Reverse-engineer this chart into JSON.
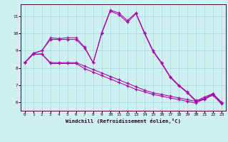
{
  "background_color": "#cff0f0",
  "grid_color": "#a0d8d8",
  "line_color": "#aa00aa",
  "xlabel": "Windchill (Refroidissement éolien,°C)",
  "xlim": [
    -0.5,
    23.5
  ],
  "ylim": [
    5.5,
    11.7
  ],
  "yticks": [
    6,
    7,
    8,
    9,
    10,
    11
  ],
  "xticks": [
    0,
    1,
    2,
    3,
    4,
    5,
    6,
    7,
    8,
    9,
    10,
    11,
    12,
    13,
    14,
    15,
    16,
    17,
    18,
    19,
    20,
    21,
    22,
    23
  ],
  "s1_x": [
    0,
    1,
    2,
    3,
    4,
    5,
    6,
    7,
    8,
    9,
    10,
    11,
    12,
    13,
    14,
    15,
    16,
    17,
    18,
    19,
    20,
    21,
    22,
    23
  ],
  "s1_y": [
    8.3,
    8.85,
    9.0,
    9.75,
    9.7,
    9.75,
    9.75,
    9.2,
    8.3,
    10.05,
    11.35,
    11.2,
    10.75,
    11.2,
    10.05,
    9.0,
    8.3,
    7.5,
    7.0,
    6.6,
    6.1,
    6.2,
    6.5,
    6.0
  ],
  "s2_x": [
    0,
    1,
    2,
    3,
    4,
    5,
    6,
    7,
    8,
    9,
    10,
    11,
    12,
    13,
    14,
    15,
    16,
    17,
    18,
    19,
    20,
    21,
    22,
    23
  ],
  "s2_y": [
    8.3,
    8.85,
    9.0,
    9.65,
    9.65,
    9.65,
    9.65,
    9.15,
    8.3,
    10.0,
    11.3,
    11.1,
    10.65,
    11.15,
    10.0,
    8.95,
    8.25,
    7.45,
    6.95,
    6.55,
    6.05,
    6.15,
    6.45,
    5.95
  ],
  "s3_x": [
    0,
    1,
    2,
    3,
    4,
    5,
    6,
    7,
    8,
    9,
    10,
    11,
    12,
    13,
    14,
    15,
    16,
    17,
    18,
    19,
    20,
    21,
    22,
    23
  ],
  "s3_y": [
    8.3,
    8.8,
    8.8,
    8.3,
    8.3,
    8.3,
    8.3,
    8.1,
    7.9,
    7.7,
    7.5,
    7.3,
    7.1,
    6.9,
    6.7,
    6.55,
    6.45,
    6.35,
    6.25,
    6.15,
    6.05,
    6.3,
    6.5,
    5.97
  ],
  "s4_x": [
    0,
    1,
    2,
    3,
    4,
    5,
    6,
    7,
    8,
    9,
    10,
    11,
    12,
    13,
    14,
    15,
    16,
    17,
    18,
    19,
    20,
    21,
    22,
    23
  ],
  "s4_y": [
    8.3,
    8.8,
    8.8,
    8.25,
    8.25,
    8.25,
    8.25,
    7.95,
    7.75,
    7.55,
    7.35,
    7.15,
    6.95,
    6.75,
    6.6,
    6.45,
    6.35,
    6.25,
    6.15,
    6.05,
    5.95,
    6.2,
    6.4,
    5.9
  ]
}
